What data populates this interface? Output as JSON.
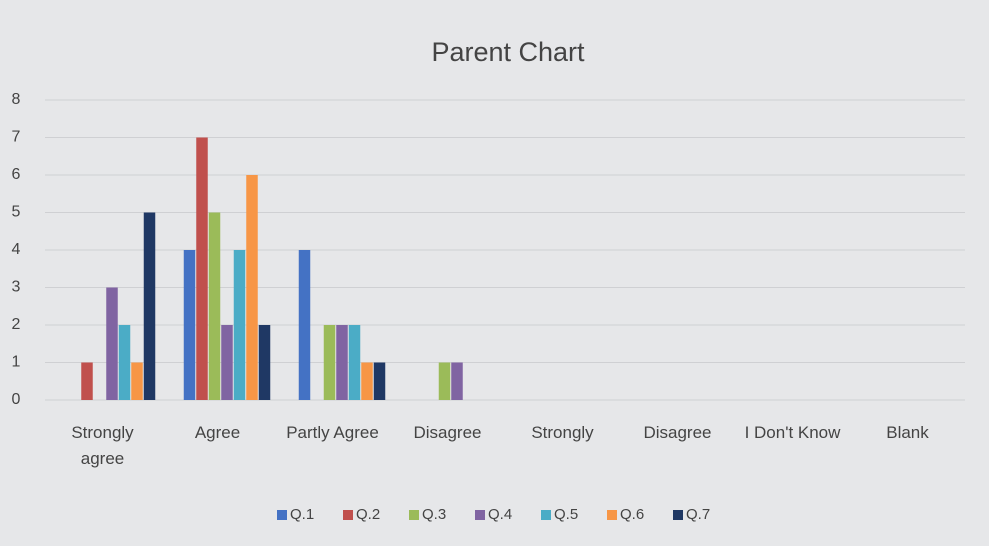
{
  "chart_data": {
    "type": "bar",
    "title": "Parent Chart",
    "categories": [
      "Strongly agree",
      "Agree",
      "Partly Agree",
      "Disagree",
      "Strongly",
      "Disagree",
      "I Don't Know",
      "Blank"
    ],
    "series": [
      {
        "name": "Q.1",
        "color": "#4472c4",
        "values": [
          0,
          4,
          4,
          0,
          0,
          0,
          0,
          0
        ]
      },
      {
        "name": "Q.2",
        "color": "#c0504d",
        "values": [
          1,
          7,
          0,
          0,
          0,
          0,
          0,
          0
        ]
      },
      {
        "name": "Q.3",
        "color": "#9bbb59",
        "values": [
          0,
          5,
          2,
          1,
          0,
          0,
          0,
          0
        ]
      },
      {
        "name": "Q.4",
        "color": "#8064a2",
        "values": [
          3,
          2,
          2,
          1,
          0,
          0,
          0,
          0
        ]
      },
      {
        "name": "Q.5",
        "color": "#4bacc6",
        "values": [
          2,
          4,
          2,
          0,
          0,
          0,
          0,
          0
        ]
      },
      {
        "name": "Q.6",
        "color": "#f79646",
        "values": [
          1,
          6,
          1,
          0,
          0,
          0,
          0,
          0
        ]
      },
      {
        "name": "Q.7",
        "color": "#1f3864",
        "values": [
          5,
          2,
          1,
          0,
          0,
          0,
          0,
          0
        ]
      }
    ],
    "ylim": [
      0,
      8
    ],
    "yticks": [
      0,
      1,
      2,
      3,
      4,
      5,
      6,
      7,
      8
    ],
    "grid": true,
    "legend": "bottom"
  }
}
